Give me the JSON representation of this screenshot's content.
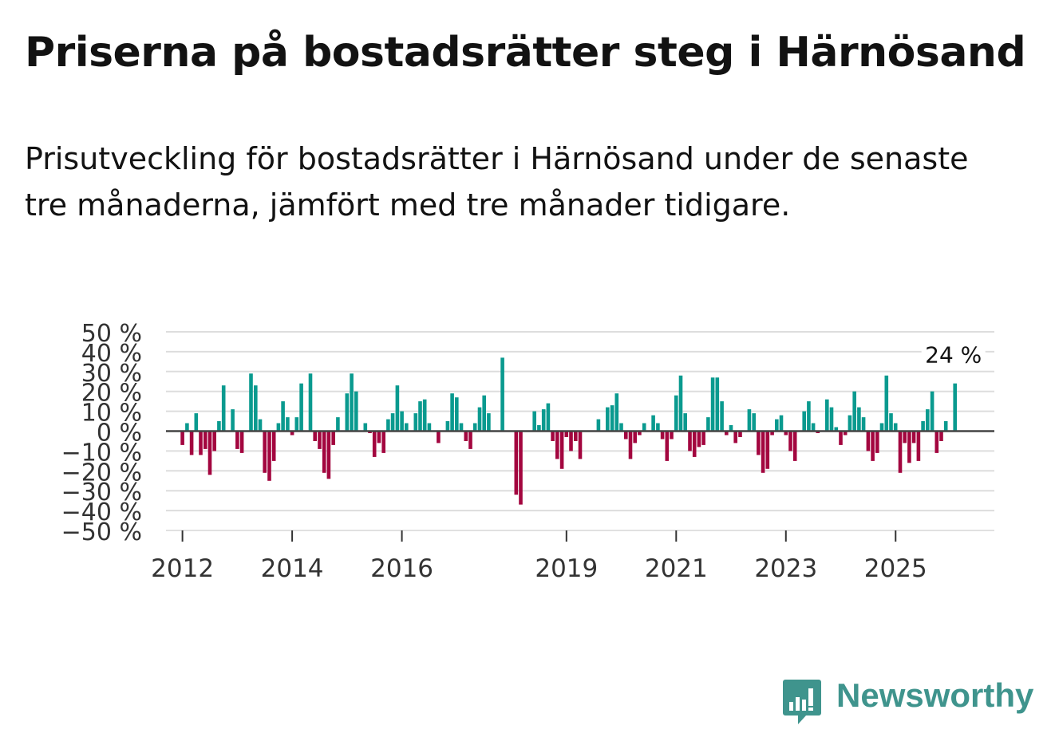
{
  "header": {
    "title": "Priserna på bostadsrätter steg i Härnösand",
    "subtitle": "Prisutveckling för bostadsrätter i Härnösand under de senaste tre månaderna, jämfört med tre månader tidigare."
  },
  "brand": {
    "name": "Newsworthy",
    "color": "#3f948d",
    "icon": "newsworthy-logo-icon"
  },
  "colors": {
    "positive": "#0a9a8f",
    "negative": "#a3063f",
    "grid": "#dddddd",
    "zero": "#444444"
  },
  "chart_data": {
    "type": "bar",
    "title": "Priserna på bostadsrätter steg i Härnösand",
    "ylabel": "",
    "xlabel": "",
    "ylim": [
      -50,
      50
    ],
    "xlim": [
      2011.7,
      2026.8
    ],
    "yticks": [
      50,
      40,
      30,
      20,
      10,
      0,
      -10,
      -20,
      -30,
      -40,
      -50
    ],
    "ytick_labels": [
      "50 %",
      "40 %",
      "30 %",
      "20 %",
      "10 %",
      "0 %",
      "−10 %",
      "−20 %",
      "−30 %",
      "−40 %",
      "−50 %"
    ],
    "xticks": [
      2012,
      2014,
      2016,
      2019,
      2021,
      2023,
      2025
    ],
    "xtick_labels": [
      "2012",
      "2014",
      "2016",
      "2019",
      "2021",
      "2023",
      "2025"
    ],
    "annotation": {
      "label": "24 %",
      "value": 24
    },
    "series": [
      {
        "name": "Prisutveckling",
        "start": 2012.0,
        "step": 0.08333,
        "values": [
          -7,
          4,
          -12,
          9,
          -12,
          -9,
          -22,
          -10,
          5,
          23,
          null,
          11,
          -9,
          -11,
          null,
          29,
          23,
          6,
          -21,
          -25,
          -15,
          4,
          15,
          7,
          -2,
          7,
          24,
          null,
          29,
          -5,
          -9,
          -21,
          -24,
          -7,
          7,
          null,
          19,
          29,
          20,
          null,
          4,
          -1,
          -13,
          -6,
          -11,
          6,
          9,
          23,
          10,
          4,
          null,
          9,
          15,
          16,
          4,
          null,
          -6,
          null,
          5,
          19,
          17,
          4,
          -5,
          -9,
          4,
          12,
          18,
          9,
          null,
          null,
          37,
          null,
          null,
          -32,
          -37,
          null,
          null,
          10,
          3,
          11,
          14,
          -5,
          -14,
          -19,
          -3,
          -10,
          -5,
          -14,
          null,
          null,
          null,
          6,
          null,
          12,
          13,
          19,
          4,
          -4,
          -14,
          -6,
          -2,
          4,
          null,
          8,
          4,
          -4,
          -15,
          -4,
          18,
          28,
          9,
          -10,
          -13,
          -8,
          -7,
          7,
          27,
          27,
          15,
          -2,
          3,
          -6,
          -3,
          null,
          11,
          9,
          -12,
          -21,
          -19,
          -2,
          6,
          8,
          -2,
          -10,
          -15,
          null,
          10,
          15,
          4,
          -1,
          null,
          16,
          12,
          2,
          -7,
          -2,
          8,
          20,
          12,
          7,
          -10,
          -15,
          -11,
          4,
          28,
          9,
          4,
          -21,
          -6,
          -16,
          -6,
          -15,
          5,
          11,
          20,
          -11,
          -5,
          5,
          null,
          24
        ]
      }
    ]
  }
}
